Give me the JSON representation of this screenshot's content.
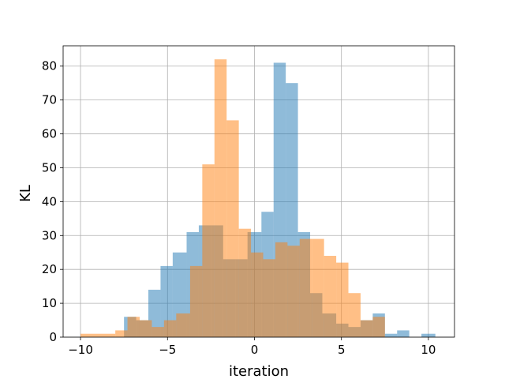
{
  "chart_data": {
    "type": "bar",
    "title": "",
    "xlabel": "iteration",
    "ylabel": "KL",
    "xlim": [
      -11.0,
      11.5
    ],
    "ylim": [
      0,
      86
    ],
    "xticks": [
      -10,
      -5,
      0,
      5,
      10
    ],
    "yticks": [
      0,
      10,
      20,
      30,
      40,
      50,
      60,
      70,
      80
    ],
    "grid": true,
    "legend": "none",
    "series": [
      {
        "color": "#1f77b4",
        "opacity": 0.5,
        "bins": [
          {
            "x0": -7.5,
            "x1": -6.8,
            "count": 6
          },
          {
            "x0": -6.8,
            "x1": -6.1,
            "count": 5
          },
          {
            "x0": -6.1,
            "x1": -5.4,
            "count": 14
          },
          {
            "x0": -5.4,
            "x1": -4.7,
            "count": 21
          },
          {
            "x0": -4.7,
            "x1": -3.9,
            "count": 25
          },
          {
            "x0": -3.9,
            "x1": -3.2,
            "count": 31
          },
          {
            "x0": -3.2,
            "x1": -2.5,
            "count": 33
          },
          {
            "x0": -2.5,
            "x1": -1.8,
            "count": 33
          },
          {
            "x0": -1.8,
            "x1": -1.1,
            "count": 23
          },
          {
            "x0": -1.1,
            "x1": -0.4,
            "count": 23
          },
          {
            "x0": -0.4,
            "x1": 0.4,
            "count": 31
          },
          {
            "x0": 0.4,
            "x1": 1.1,
            "count": 37
          },
          {
            "x0": 1.1,
            "x1": 1.8,
            "count": 81
          },
          {
            "x0": 1.8,
            "x1": 2.5,
            "count": 75
          },
          {
            "x0": 2.5,
            "x1": 3.2,
            "count": 31
          },
          {
            "x0": 3.2,
            "x1": 3.9,
            "count": 13
          },
          {
            "x0": 3.9,
            "x1": 4.7,
            "count": 7
          },
          {
            "x0": 4.7,
            "x1": 5.4,
            "count": 4
          },
          {
            "x0": 5.4,
            "x1": 6.1,
            "count": 3
          },
          {
            "x0": 6.1,
            "x1": 6.8,
            "count": 5
          },
          {
            "x0": 6.8,
            "x1": 7.5,
            "count": 7
          },
          {
            "x0": 7.5,
            "x1": 8.2,
            "count": 1
          },
          {
            "x0": 8.2,
            "x1": 8.9,
            "count": 2
          },
          {
            "x0": 8.9,
            "x1": 9.6,
            "count": 0
          },
          {
            "x0": 9.6,
            "x1": 10.4,
            "count": 1
          }
        ]
      },
      {
        "color": "#ff7f0e",
        "opacity": 0.5,
        "bins": [
          {
            "x0": -10.0,
            "x1": -8.0,
            "count": 1
          },
          {
            "x0": -8.0,
            "x1": -7.3,
            "count": 2
          },
          {
            "x0": -7.3,
            "x1": -6.6,
            "count": 6
          },
          {
            "x0": -6.6,
            "x1": -5.9,
            "count": 5
          },
          {
            "x0": -5.9,
            "x1": -5.2,
            "count": 3
          },
          {
            "x0": -5.2,
            "x1": -4.5,
            "count": 5
          },
          {
            "x0": -4.5,
            "x1": -3.7,
            "count": 7
          },
          {
            "x0": -3.7,
            "x1": -3.0,
            "count": 21
          },
          {
            "x0": -3.0,
            "x1": -2.3,
            "count": 51
          },
          {
            "x0": -2.3,
            "x1": -1.6,
            "count": 82
          },
          {
            "x0": -1.6,
            "x1": -0.9,
            "count": 64
          },
          {
            "x0": -0.9,
            "x1": -0.2,
            "count": 32
          },
          {
            "x0": -0.2,
            "x1": 0.5,
            "count": 25
          },
          {
            "x0": 0.5,
            "x1": 1.2,
            "count": 23
          },
          {
            "x0": 1.2,
            "x1": 1.9,
            "count": 28
          },
          {
            "x0": 1.9,
            "x1": 2.6,
            "count": 27
          },
          {
            "x0": 2.6,
            "x1": 3.3,
            "count": 29
          },
          {
            "x0": 3.3,
            "x1": 4.0,
            "count": 29
          },
          {
            "x0": 4.0,
            "x1": 4.7,
            "count": 24
          },
          {
            "x0": 4.7,
            "x1": 5.4,
            "count": 22
          },
          {
            "x0": 5.4,
            "x1": 6.1,
            "count": 13
          },
          {
            "x0": 6.1,
            "x1": 6.8,
            "count": 5
          },
          {
            "x0": 6.8,
            "x1": 7.5,
            "count": 6
          }
        ]
      }
    ]
  }
}
